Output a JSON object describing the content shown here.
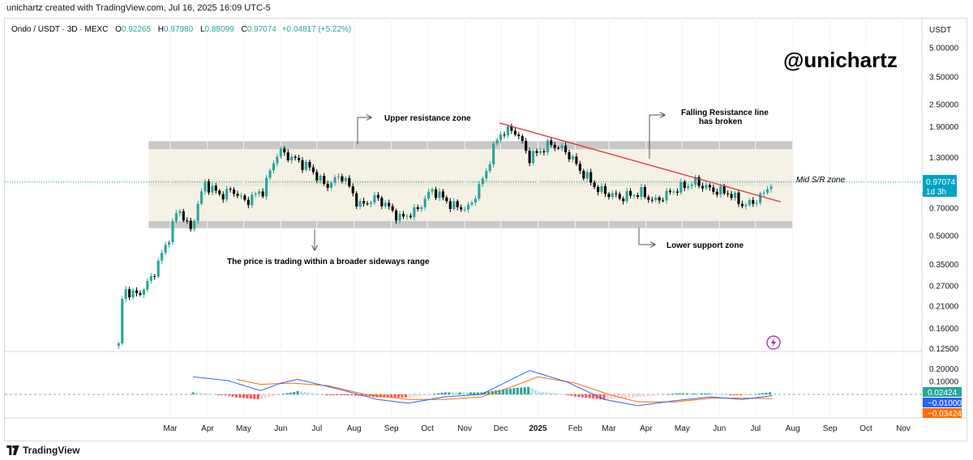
{
  "credit": "unichartz created with TradingView.com, Jul 16, 2025 16:09 UTC-5",
  "header": {
    "symbol": "Ondo / USDT · 3D · MEXC",
    "o_label": "O",
    "o_value": "0.92265",
    "h_label": "H",
    "h_value": "0.97980",
    "l_label": "L",
    "l_value": "0.88099",
    "c_label": "C",
    "c_value": "0.97074",
    "change": "+0.04817 (+5.22%)"
  },
  "watermark": "@unichartz",
  "footer_brand": "TradingView",
  "colors": {
    "up": "#26a69a",
    "down": "#000000",
    "resistance_line": "#e0323f",
    "zone_gray": "#c8c8c8",
    "range_fill": "#f5f1e4",
    "last_price": "#00a3c4",
    "macd_line": "#2962ff",
    "signal_line": "#ff6d00",
    "hist_pos_strong": "#26a69a",
    "hist_pos_weak": "#b2dfdb",
    "hist_neg_strong": "#ff5252",
    "hist_neg_weak": "#ffcdd2"
  },
  "chart_data": [
    {
      "type": "candlestick",
      "y_scale": "log",
      "price_axis_title": "USDT",
      "y_ticks": [
        "5.00000",
        "3.50000",
        "2.50000",
        "1.90000",
        "1.30000",
        "0.70000",
        "0.50000",
        "0.35000",
        "0.27000",
        "0.21000",
        "0.16000",
        "0.12500"
      ],
      "x_ticks": [
        "Mar",
        "Apr",
        "May",
        "Jun",
        "Jul",
        "Aug",
        "Sep",
        "Oct",
        "Nov",
        "Dec",
        "2025",
        "Feb",
        "Mar",
        "Apr",
        "May",
        "Jun",
        "Jul",
        "Aug",
        "Sep",
        "Oct",
        "Nov"
      ],
      "x_tick_dates": [
        "2024-03-01",
        "2024-04-01",
        "2024-05-01",
        "2024-06-01",
        "2024-07-01",
        "2024-08-01",
        "2024-09-01",
        "2024-10-01",
        "2024-11-01",
        "2024-12-01",
        "2025-01-01",
        "2025-02-01",
        "2025-03-01",
        "2025-04-01",
        "2025-05-01",
        "2025-06-01",
        "2025-07-01",
        "2025-08-01",
        "2025-09-01",
        "2025-10-01",
        "2025-11-01"
      ],
      "last_price": "0.97074",
      "countdown": "1d 3h",
      "zones": [
        {
          "name": "Upper resistance zone",
          "from": 1.45,
          "to": 1.6
        },
        {
          "name": "Lower support zone",
          "from": 0.55,
          "to": 0.6
        },
        {
          "name": "Sideways range",
          "from": 0.6,
          "to": 1.45
        },
        {
          "name": "Mid S/R zone",
          "from": 0.92,
          "to": 0.99
        }
      ],
      "resistance_line": {
        "from": {
          "date": "2024-11-30",
          "price": 2.0
        },
        "to": {
          "date": "2025-07-22",
          "price": 0.76
        }
      },
      "annotations": {
        "upper": "Upper resistance zone",
        "falling": "Falling Resistance line",
        "falling2": "has broken",
        "mid": "Mid S/R zone",
        "lower": "Lower support zone",
        "sideways": "The price is trading within a broader sideways range"
      },
      "anchors": [
        {
          "date": "2024-01-18",
          "price": 0.13
        },
        {
          "date": "2024-01-22",
          "price": 0.26
        },
        {
          "date": "2024-02-03",
          "price": 0.24
        },
        {
          "date": "2024-02-15",
          "price": 0.3
        },
        {
          "date": "2024-02-27",
          "price": 0.45
        },
        {
          "date": "2024-03-08",
          "price": 0.7
        },
        {
          "date": "2024-03-18",
          "price": 0.53
        },
        {
          "date": "2024-03-30",
          "price": 0.95
        },
        {
          "date": "2024-04-12",
          "price": 0.82
        },
        {
          "date": "2024-04-22",
          "price": 0.88
        },
        {
          "date": "2024-05-02",
          "price": 0.76
        },
        {
          "date": "2024-05-18",
          "price": 0.88
        },
        {
          "date": "2024-05-30",
          "price": 1.42
        },
        {
          "date": "2024-06-25",
          "price": 1.15
        },
        {
          "date": "2024-07-08",
          "price": 0.92
        },
        {
          "date": "2024-07-22",
          "price": 1.05
        },
        {
          "date": "2024-08-05",
          "price": 0.72
        },
        {
          "date": "2024-08-20",
          "price": 0.8
        },
        {
          "date": "2024-09-08",
          "price": 0.62
        },
        {
          "date": "2024-09-22",
          "price": 0.68
        },
        {
          "date": "2024-10-05",
          "price": 0.88
        },
        {
          "date": "2024-10-22",
          "price": 0.72
        },
        {
          "date": "2024-11-05",
          "price": 0.7
        },
        {
          "date": "2024-11-18",
          "price": 1.05
        },
        {
          "date": "2024-11-30",
          "price": 1.75
        },
        {
          "date": "2024-12-12",
          "price": 1.85
        },
        {
          "date": "2024-12-25",
          "price": 1.3
        },
        {
          "date": "2025-01-12",
          "price": 1.55
        },
        {
          "date": "2025-01-25",
          "price": 1.4
        },
        {
          "date": "2025-02-05",
          "price": 1.12
        },
        {
          "date": "2025-02-20",
          "price": 0.88
        },
        {
          "date": "2025-03-10",
          "price": 0.8
        },
        {
          "date": "2025-03-28",
          "price": 0.85
        },
        {
          "date": "2025-04-08",
          "price": 0.76
        },
        {
          "date": "2025-04-25",
          "price": 0.88
        },
        {
          "date": "2025-05-12",
          "price": 0.97
        },
        {
          "date": "2025-05-25",
          "price": 0.88
        },
        {
          "date": "2025-06-08",
          "price": 0.85
        },
        {
          "date": "2025-06-22",
          "price": 0.72
        },
        {
          "date": "2025-07-05",
          "price": 0.8
        },
        {
          "date": "2025-07-15",
          "price": 0.97
        }
      ]
    },
    {
      "type": "macd",
      "y_ticks": [
        "0.20000",
        "0.10000"
      ],
      "labels": {
        "histogram": "0.02424",
        "macd": "−0.01000",
        "signal": "−0.03424"
      },
      "macd_anchors": [
        {
          "date": "2024-03-20",
          "price": 0.14
        },
        {
          "date": "2024-04-18",
          "price": 0.11
        },
        {
          "date": "2024-05-15",
          "price": 0.03
        },
        {
          "date": "2024-06-01",
          "price": 0.09
        },
        {
          "date": "2024-06-15",
          "price": 0.12
        },
        {
          "date": "2024-07-20",
          "price": 0.04
        },
        {
          "date": "2024-08-20",
          "price": -0.04
        },
        {
          "date": "2024-09-15",
          "price": -0.07
        },
        {
          "date": "2024-10-15",
          "price": -0.02
        },
        {
          "date": "2024-11-15",
          "price": 0.0
        },
        {
          "date": "2024-12-10",
          "price": 0.12
        },
        {
          "date": "2024-12-25",
          "price": 0.19
        },
        {
          "date": "2025-01-25",
          "price": 0.1
        },
        {
          "date": "2025-02-25",
          "price": -0.04
        },
        {
          "date": "2025-03-25",
          "price": -0.09
        },
        {
          "date": "2025-04-25",
          "price": -0.05
        },
        {
          "date": "2025-05-25",
          "price": -0.02
        },
        {
          "date": "2025-06-20",
          "price": -0.04
        },
        {
          "date": "2025-07-15",
          "price": -0.01
        }
      ],
      "signal_anchors": [
        {
          "date": "2024-04-25",
          "price": 0.12
        },
        {
          "date": "2024-05-15",
          "price": 0.08
        },
        {
          "date": "2024-06-10",
          "price": 0.09
        },
        {
          "date": "2024-07-10",
          "price": 0.07
        },
        {
          "date": "2024-08-10",
          "price": 0.0
        },
        {
          "date": "2024-09-15",
          "price": -0.04
        },
        {
          "date": "2024-10-15",
          "price": -0.04
        },
        {
          "date": "2024-11-15",
          "price": -0.02
        },
        {
          "date": "2024-12-10",
          "price": 0.06
        },
        {
          "date": "2025-01-01",
          "price": 0.14
        },
        {
          "date": "2025-02-01",
          "price": 0.09
        },
        {
          "date": "2025-03-01",
          "price": 0.0
        },
        {
          "date": "2025-03-25",
          "price": -0.06
        },
        {
          "date": "2025-04-25",
          "price": -0.06
        },
        {
          "date": "2025-05-25",
          "price": -0.03
        },
        {
          "date": "2025-06-25",
          "price": -0.03
        },
        {
          "date": "2025-07-15",
          "price": -0.034
        }
      ]
    }
  ]
}
